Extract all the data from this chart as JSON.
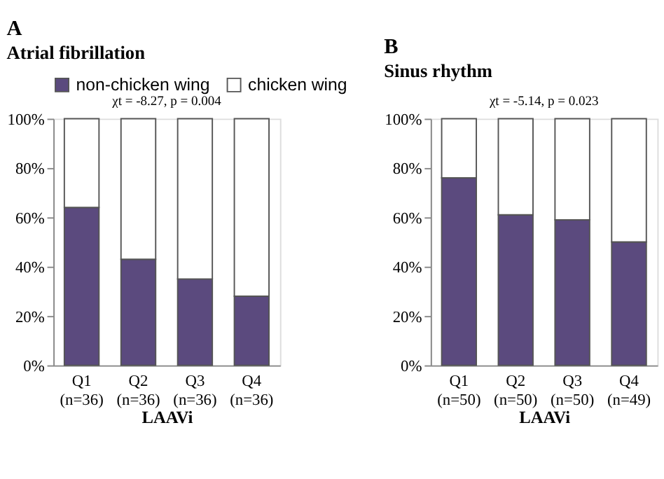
{
  "chart_data": [
    {
      "type": "bar",
      "title": "A",
      "subtitle": "Atrial fibrillation",
      "annotations": [
        "χt = -8.27, p = 0.004"
      ],
      "xlabel": "LAAVi",
      "categories": [
        "Q1 (n=36)",
        "Q2 (n=36)",
        "Q3 (n=36)",
        "Q4 (n=36)"
      ],
      "stacked": true,
      "legend": "top",
      "grid": false,
      "series": [
        {
          "name": "non-chicken wing",
          "color": "#5b4a7e",
          "values": [
            64,
            43,
            35,
            28
          ]
        },
        {
          "name": "chicken wing",
          "color": "#ffffff",
          "values": [
            36,
            57,
            65,
            72
          ]
        }
      ],
      "ylim": [
        0,
        100
      ],
      "yticks": [
        {
          "value": 0,
          "label": "0%"
        },
        {
          "value": 20,
          "label": "20%"
        },
        {
          "value": 40,
          "label": "40%"
        },
        {
          "value": 60,
          "label": "60%"
        },
        {
          "value": 80,
          "label": "80%"
        },
        {
          "value": 100,
          "label": "100%"
        }
      ]
    },
    {
      "type": "bar",
      "title": "B",
      "subtitle": "Sinus rhythm",
      "annotations": [
        "χt = -5.14, p = 0.023"
      ],
      "xlabel": "LAAVi",
      "categories": [
        "Q1 (n=50)",
        "Q2 (n=50)",
        "Q3 (n=50)",
        "Q4 (n=49)"
      ],
      "stacked": true,
      "legend": false,
      "grid": false,
      "series": [
        {
          "color": "#5b4a7e",
          "values": [
            76,
            61,
            59,
            50
          ]
        },
        {
          "color": "#ffffff",
          "values": [
            24,
            39,
            41,
            50
          ]
        }
      ],
      "ylim": [
        0,
        100
      ],
      "yticks": [
        {
          "value": 0,
          "label": "0%"
        },
        {
          "value": 20,
          "label": "20%"
        },
        {
          "value": 40,
          "label": "40%"
        },
        {
          "value": 60,
          "label": "60%"
        },
        {
          "value": 80,
          "label": "80%"
        },
        {
          "value": 100,
          "label": "100%"
        }
      ]
    }
  ]
}
